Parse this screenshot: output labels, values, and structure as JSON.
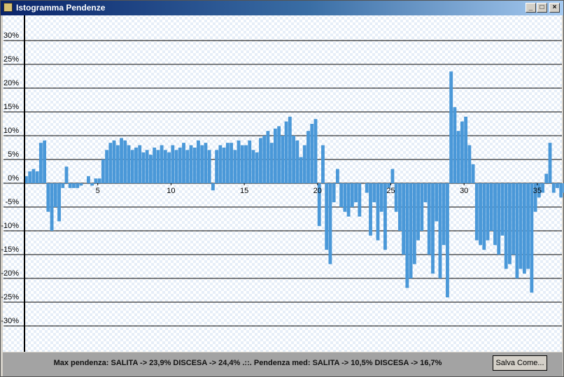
{
  "window": {
    "title": "Istogramma Pendenze"
  },
  "chart_data": {
    "type": "bar",
    "color": "#4a98d8",
    "grid": true,
    "x": [
      0,
      0.25,
      0.5,
      0.75,
      1,
      1.25,
      1.5,
      1.75,
      2,
      2.25,
      2.5,
      2.75,
      3,
      3.25,
      3.5,
      3.75,
      4,
      4.25,
      4.5,
      4.75,
      5,
      5.25,
      5.5,
      5.75,
      6,
      6.25,
      6.5,
      6.75,
      7,
      7.25,
      7.5,
      7.75,
      8,
      8.25,
      8.5,
      8.75,
      9,
      9.25,
      9.5,
      9.75,
      10,
      10.25,
      10.5,
      10.75,
      11,
      11.25,
      11.5,
      11.75,
      12,
      12.25,
      12.5,
      12.75,
      13,
      13.25,
      13.5,
      13.75,
      14,
      14.25,
      14.5,
      14.75,
      15,
      15.25,
      15.5,
      15.75,
      16,
      16.25,
      16.5,
      16.75,
      17,
      17.25,
      17.5,
      17.75,
      18,
      18.25,
      18.5,
      18.75,
      19,
      19.25,
      19.5,
      19.75,
      20,
      20.25,
      20.5,
      20.75,
      21,
      21.25,
      21.5,
      21.75,
      22,
      22.25,
      22.5,
      22.75,
      23,
      23.25,
      23.5,
      23.75,
      24,
      24.25,
      24.5,
      24.75,
      25,
      25.25,
      25.5,
      25.75,
      26,
      26.25,
      26.5,
      26.75,
      27,
      27.25,
      27.5,
      27.75,
      28,
      28.25,
      28.5,
      28.75,
      29,
      29.25,
      29.5,
      29.75,
      30,
      30.25,
      30.5,
      30.75,
      31,
      31.25,
      31.5,
      31.75,
      32,
      32.25,
      32.5,
      32.75,
      33,
      33.25,
      33.5,
      33.75,
      34,
      34.25,
      34.5,
      34.75,
      35,
      35.25,
      35.5,
      35.75,
      36,
      36.25,
      36.5,
      36.75
    ],
    "values": [
      1.5,
      2.5,
      3,
      2.5,
      8.5,
      9,
      -6,
      -10,
      -5,
      -8,
      -1,
      3.5,
      -1,
      -1,
      -1,
      -0.5,
      0,
      1.5,
      -0.5,
      1,
      1,
      5,
      7,
      8.5,
      9,
      8,
      9.5,
      9,
      8,
      7,
      7.5,
      8,
      6.5,
      7,
      6,
      7.5,
      7,
      8,
      7,
      6.5,
      8,
      7,
      7.5,
      8.5,
      7,
      8,
      7.5,
      9,
      8,
      8.5,
      7,
      -1.5,
      7,
      8,
      7.5,
      8.5,
      8.5,
      7,
      9,
      8,
      8,
      9,
      7,
      6.5,
      9.5,
      10,
      11,
      8.5,
      11.5,
      12,
      10,
      13,
      14,
      10,
      9,
      5.5,
      8,
      11,
      12.5,
      13.5,
      -9,
      8,
      -14,
      -17,
      -4,
      3,
      -5,
      -6,
      -7,
      -5,
      -4,
      -7,
      0,
      -2,
      -11,
      -4,
      -12,
      -6,
      -14,
      -1,
      3,
      -6,
      -10,
      -15,
      -22,
      -20,
      -17,
      -12,
      -10,
      -4,
      -15,
      -19,
      -8,
      -20,
      -13,
      -24,
      23.5,
      16,
      11,
      13,
      14,
      8,
      4,
      -12,
      -13,
      -14,
      -12,
      -10,
      -13,
      -15,
      -11,
      -18,
      -17,
      -15,
      -20,
      -18,
      -19,
      -18,
      -23,
      -6,
      -3,
      -2,
      2,
      8.5,
      -2,
      -1,
      -3,
      -2
    ],
    "xlim": [
      0,
      36.7
    ],
    "xticks": [
      5,
      10,
      15,
      20,
      25,
      30,
      35
    ],
    "ylim": [
      -35,
      35
    ],
    "yticks": [
      {
        "value": 30,
        "label": "30%"
      },
      {
        "value": 25,
        "label": "25%"
      },
      {
        "value": 20,
        "label": "20%"
      },
      {
        "value": 15,
        "label": "15%"
      },
      {
        "value": 10,
        "label": "10%"
      },
      {
        "value": 5,
        "label": "5%"
      },
      {
        "value": 0,
        "label": "0%"
      },
      {
        "value": -5,
        "label": "-5%"
      },
      {
        "value": -10,
        "label": "-10%"
      },
      {
        "value": -15,
        "label": "-15%"
      },
      {
        "value": -20,
        "label": "-20%"
      },
      {
        "value": -25,
        "label": "-25%"
      },
      {
        "value": -30,
        "label": "-30%"
      }
    ]
  },
  "status": {
    "text": "Max pendenza: SALITA -> 23,9% DISCESA -> 24,4% .::. Pendenza med: SALITA -> 10,5% DISCESA -> 16,7%"
  },
  "buttons": {
    "save": "Salva Come..."
  }
}
